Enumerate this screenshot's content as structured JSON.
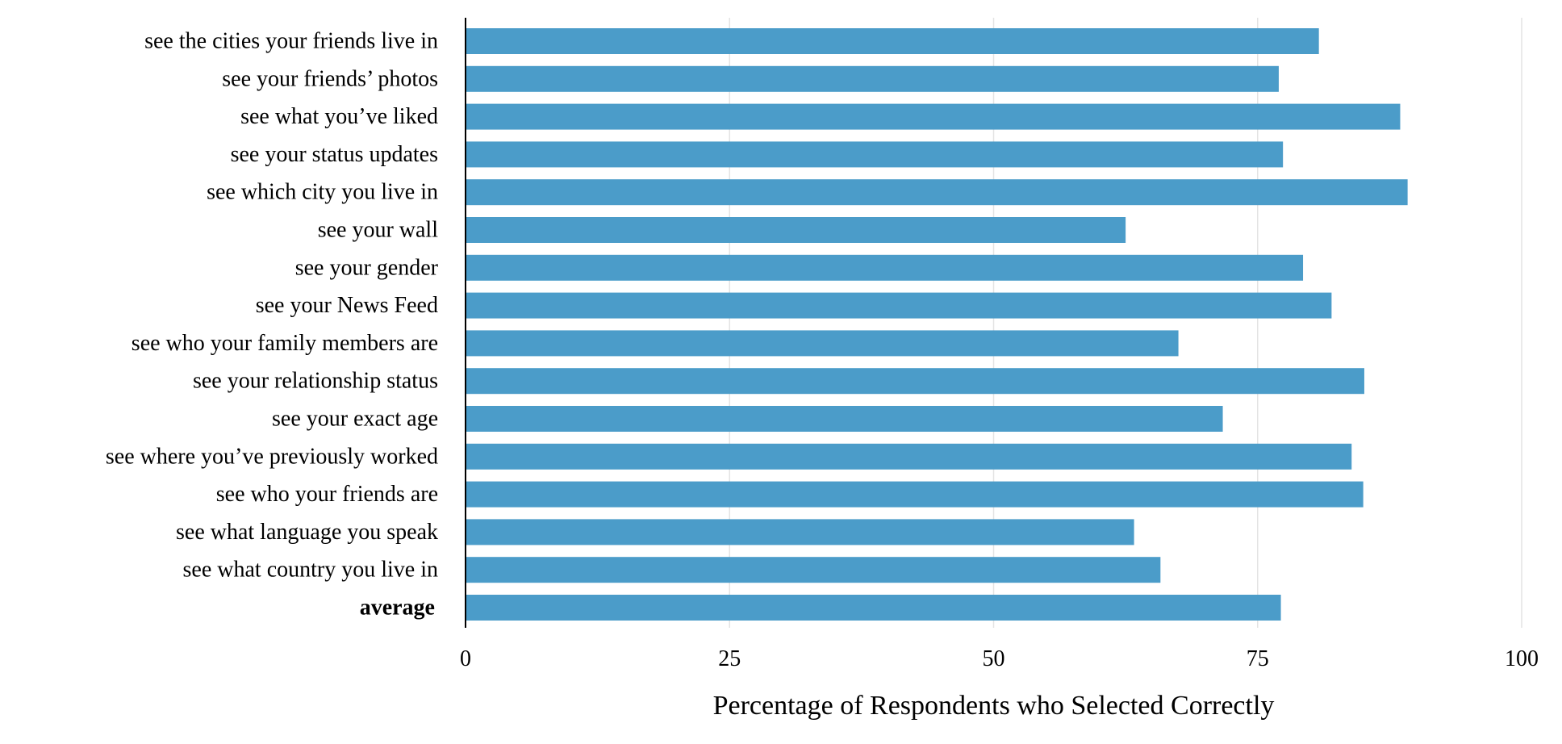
{
  "chart_data": {
    "type": "bar",
    "orientation": "horizontal",
    "categories": [
      "see the cities your friends live in",
      "see your friends’ photos",
      "see what you’ve liked",
      "see your status updates",
      "see which city you live in",
      "see your wall",
      "see your gender",
      "see your News Feed",
      "see who your family members are",
      "see your relationship status",
      "see your exact age",
      "see where you’ve previously worked",
      "see who your friends are",
      "see what language you speak",
      "see what country you live in",
      "average"
    ],
    "values": [
      80.8,
      77.0,
      88.5,
      77.4,
      89.2,
      62.5,
      79.3,
      82.0,
      67.5,
      85.1,
      71.7,
      83.9,
      85.0,
      63.3,
      65.8,
      77.2
    ],
    "emphasized_categories": [
      "average"
    ],
    "xlabel": "Percentage of Respondents who Selected Correctly",
    "ylabel": "",
    "xlim": [
      0,
      100
    ],
    "xticks": [
      0,
      25,
      50,
      75,
      100
    ],
    "xtick_labels": [
      "0",
      "25",
      "50",
      "75",
      "100"
    ],
    "grid": "vertical",
    "bar_color": "#4b9cc9",
    "grid_color": "#e3e3e3",
    "axis_color": "#000000"
  }
}
